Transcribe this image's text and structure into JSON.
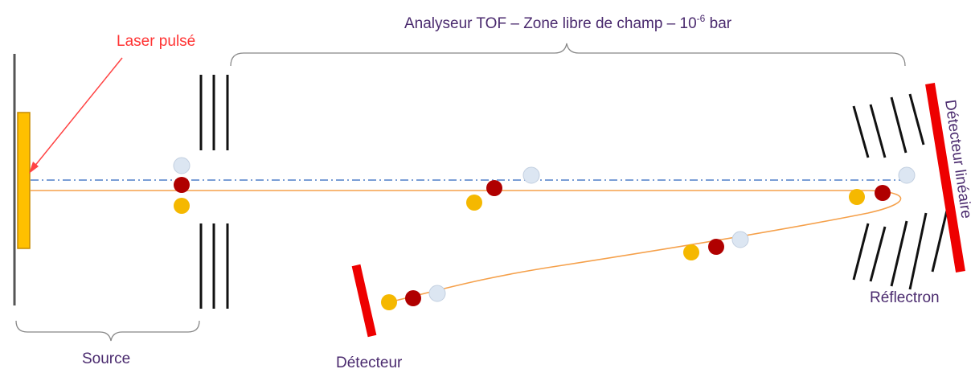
{
  "labels": {
    "laser": "Laser pulsé",
    "analyzer_main": "Analyseur TOF – Zone libre de champ – 10",
    "analyzer_exp": "-6",
    "analyzer_unit": " bar",
    "source": "Source",
    "detector": "Détecteur",
    "reflectron": "Réflectron",
    "linear_detector": "Détecteur linéaire"
  },
  "colors": {
    "laser": "#ff4444",
    "sample": "#ffc000",
    "sample_border": "#c58a00",
    "detector": "#ee0000",
    "ion_yellow": "#f5b800",
    "ion_red": "#b00000",
    "ion_blue": "#dce6f2",
    "ion_blue_stroke": "#c2cfe0",
    "beam": "#f5a04a",
    "axis": "#7a9ed6",
    "text_purple": "#4a2a6e",
    "grid": "#111111"
  }
}
